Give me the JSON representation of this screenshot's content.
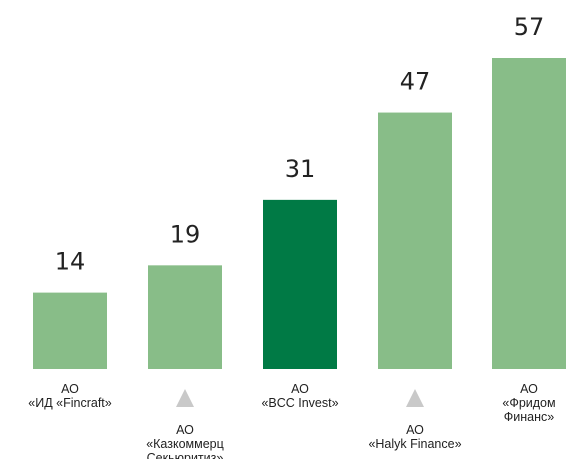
{
  "chart_data": {
    "type": "bar",
    "categories": [
      "АО «ИД «Fincraft»",
      "АО «Казкоммерц Секьюритиз»",
      "АО «BCC Invest»",
      "АО «Halyk Finance»",
      "АО «Фридом Финанс»"
    ],
    "category_label_lines": [
      [
        "АО",
        "«ИД «Fincraft»"
      ],
      [
        "АО",
        "«Казкоммерц",
        "Секьюритиз»"
      ],
      [
        "АО",
        "«BCC Invest»"
      ],
      [
        "АО",
        "«Halyk Finance»"
      ],
      [
        "АО",
        "«Фридом",
        "Финанс»"
      ]
    ],
    "values": [
      14,
      19,
      31,
      47,
      57
    ],
    "highlight_index": 2,
    "markers": [
      false,
      true,
      false,
      true,
      false
    ],
    "colors": {
      "bar": "#88bd88",
      "highlight": "#007a45",
      "marker": "#c9c9c9"
    },
    "title": "",
    "xlabel": "",
    "ylabel": "",
    "ylim": [
      0,
      57
    ],
    "grid": false,
    "legend": "none"
  }
}
